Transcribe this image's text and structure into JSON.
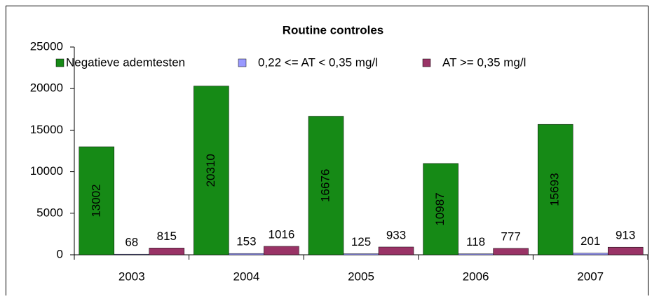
{
  "chart_data": {
    "type": "bar",
    "title": "Routine controles",
    "categories": [
      "2003",
      "2004",
      "2005",
      "2006",
      "2007"
    ],
    "series": [
      {
        "name": "Negatieve ademtesten",
        "color": "#168a16",
        "values": [
          13002,
          20310,
          16676,
          10987,
          15693
        ]
      },
      {
        "name": "0,22 <= AT < 0,35 mg/l",
        "color": "#9999ff",
        "values": [
          68,
          153,
          125,
          118,
          201
        ]
      },
      {
        "name": "AT >= 0,35 mg/l",
        "color": "#993366",
        "values": [
          815,
          1016,
          933,
          777,
          913
        ]
      }
    ],
    "ylim": [
      0,
      25000
    ],
    "yticks": [
      0,
      5000,
      10000,
      15000,
      20000,
      25000
    ],
    "grid": false,
    "legend": "top"
  }
}
